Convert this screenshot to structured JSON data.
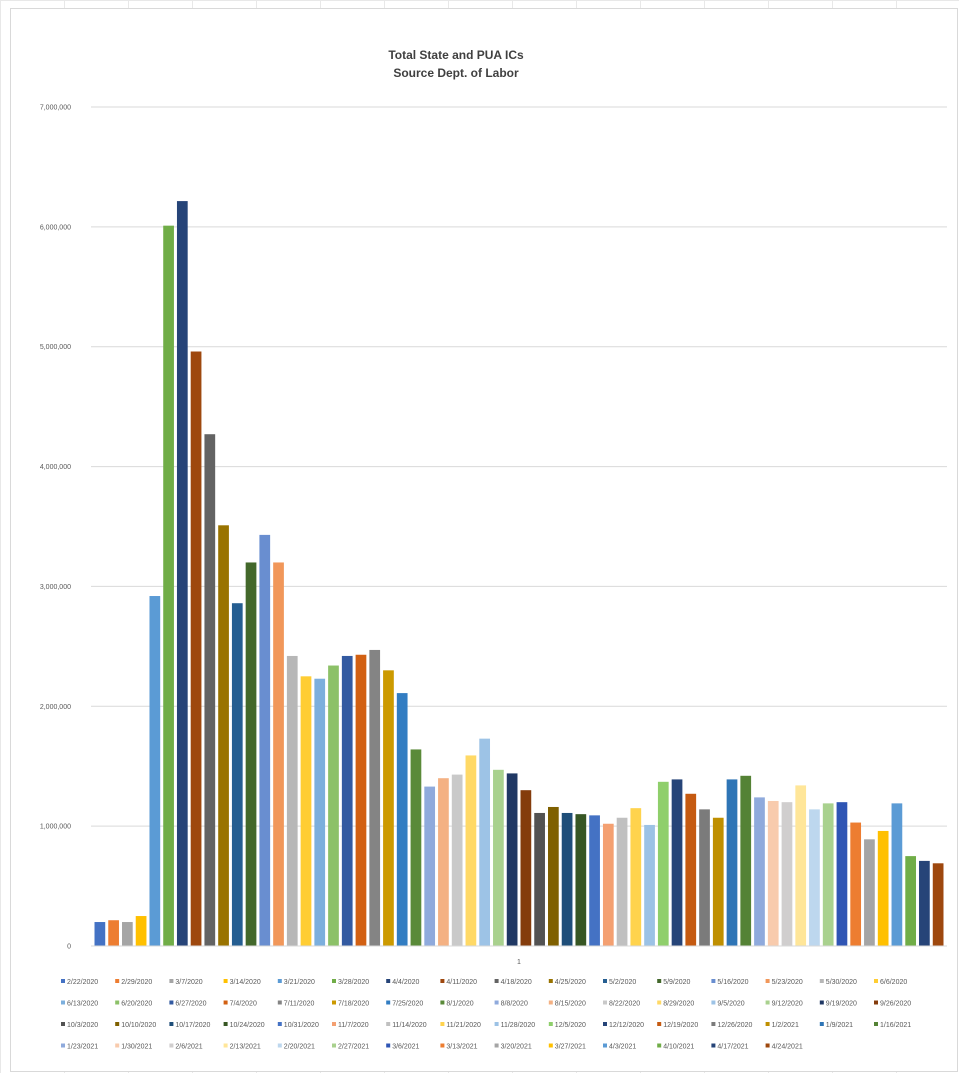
{
  "chart_data": {
    "type": "bar",
    "title": "Total State and PUA ICs",
    "subtitle": "Source Dept. of Labor",
    "xlabel": "",
    "ylabel": "",
    "categories": [
      "1"
    ],
    "x_tick_label": "1",
    "ylim": [
      0,
      7000000
    ],
    "y_ticks": [
      {
        "value": 0,
        "label": "0"
      },
      {
        "value": 1000000,
        "label": "1,000,000"
      },
      {
        "value": 2000000,
        "label": "2,000,000"
      },
      {
        "value": 3000000,
        "label": "3,000,000"
      },
      {
        "value": 4000000,
        "label": "4,000,000"
      },
      {
        "value": 5000000,
        "label": "5,000,000"
      },
      {
        "value": 6000000,
        "label": "6,000,000"
      },
      {
        "value": 7000000,
        "label": "7,000,000"
      }
    ],
    "grid": true,
    "legend_position": "bottom",
    "series": [
      {
        "name": "2/22/2020",
        "value": 200000,
        "color": "#4472c4"
      },
      {
        "name": "2/29/2020",
        "value": 215000,
        "color": "#ed7d31"
      },
      {
        "name": "3/7/2020",
        "value": 200000,
        "color": "#a5a5a5"
      },
      {
        "name": "3/14/2020",
        "value": 250000,
        "color": "#ffc000"
      },
      {
        "name": "3/21/2020",
        "value": 2920000,
        "color": "#5b9bd5"
      },
      {
        "name": "3/28/2020",
        "value": 6010000,
        "color": "#70ad47"
      },
      {
        "name": "4/4/2020",
        "value": 6215000,
        "color": "#264478"
      },
      {
        "name": "4/11/2020",
        "value": 4960000,
        "color": "#9e480e"
      },
      {
        "name": "4/18/2020",
        "value": 4270000,
        "color": "#636363"
      },
      {
        "name": "4/25/2020",
        "value": 3510000,
        "color": "#997300"
      },
      {
        "name": "5/2/2020",
        "value": 2860000,
        "color": "#255e91"
      },
      {
        "name": "5/9/2020",
        "value": 3200000,
        "color": "#43682b"
      },
      {
        "name": "5/16/2020",
        "value": 3430000,
        "color": "#698ed0"
      },
      {
        "name": "5/23/2020",
        "value": 3200000,
        "color": "#f1975a"
      },
      {
        "name": "5/30/2020",
        "value": 2420000,
        "color": "#b7b7b7"
      },
      {
        "name": "6/6/2020",
        "value": 2250000,
        "color": "#ffcd33"
      },
      {
        "name": "6/13/2020",
        "value": 2230000,
        "color": "#7cafdd"
      },
      {
        "name": "6/20/2020",
        "value": 2340000,
        "color": "#8cc168"
      },
      {
        "name": "6/27/2020",
        "value": 2420000,
        "color": "#335aa1"
      },
      {
        "name": "7/4/2020",
        "value": 2430000,
        "color": "#d26012"
      },
      {
        "name": "7/11/2020",
        "value": 2470000,
        "color": "#848484"
      },
      {
        "name": "7/18/2020",
        "value": 2300000,
        "color": "#cc9a00"
      },
      {
        "name": "7/25/2020",
        "value": 2110000,
        "color": "#327dc2"
      },
      {
        "name": "8/1/2020",
        "value": 1640000,
        "color": "#5a8a39"
      },
      {
        "name": "8/8/2020",
        "value": 1330000,
        "color": "#8faadc"
      },
      {
        "name": "8/15/2020",
        "value": 1400000,
        "color": "#f4b183"
      },
      {
        "name": "8/22/2020",
        "value": 1430000,
        "color": "#c9c9c9"
      },
      {
        "name": "8/29/2020",
        "value": 1590000,
        "color": "#ffd966"
      },
      {
        "name": "9/5/2020",
        "value": 1730000,
        "color": "#9dc3e6"
      },
      {
        "name": "9/12/2020",
        "value": 1470000,
        "color": "#a9d18e"
      },
      {
        "name": "9/19/2020",
        "value": 1440000,
        "color": "#203864"
      },
      {
        "name": "9/26/2020",
        "value": 1300000,
        "color": "#843c0c"
      },
      {
        "name": "10/3/2020",
        "value": 1110000,
        "color": "#525252"
      },
      {
        "name": "10/10/2020",
        "value": 1160000,
        "color": "#7f6000"
      },
      {
        "name": "10/17/2020",
        "value": 1110000,
        "color": "#1f4e79"
      },
      {
        "name": "10/24/2020",
        "value": 1100000,
        "color": "#375623"
      },
      {
        "name": "10/31/2020",
        "value": 1090000,
        "color": "#4472c4"
      },
      {
        "name": "11/7/2020",
        "value": 1020000,
        "color": "#f4a071"
      },
      {
        "name": "11/14/2020",
        "value": 1070000,
        "color": "#c0c0c0"
      },
      {
        "name": "11/21/2020",
        "value": 1150000,
        "color": "#ffd34d"
      },
      {
        "name": "11/28/2020",
        "value": 1010000,
        "color": "#9cc2e5"
      },
      {
        "name": "12/5/2020",
        "value": 1370000,
        "color": "#8fcf6b"
      },
      {
        "name": "12/12/2020",
        "value": 1390000,
        "color": "#264478"
      },
      {
        "name": "12/19/2020",
        "value": 1270000,
        "color": "#c55a11"
      },
      {
        "name": "12/26/2020",
        "value": 1140000,
        "color": "#7b7b7b"
      },
      {
        "name": "1/2/2021",
        "value": 1070000,
        "color": "#bf8f00"
      },
      {
        "name": "1/9/2021",
        "value": 1390000,
        "color": "#2e75b6"
      },
      {
        "name": "1/16/2021",
        "value": 1420000,
        "color": "#548235"
      },
      {
        "name": "1/23/2021",
        "value": 1240000,
        "color": "#8faadc"
      },
      {
        "name": "1/30/2021",
        "value": 1210000,
        "color": "#f8cbad"
      },
      {
        "name": "2/6/2021",
        "value": 1200000,
        "color": "#d0cece"
      },
      {
        "name": "2/13/2021",
        "value": 1340000,
        "color": "#ffe699"
      },
      {
        "name": "2/20/2021",
        "value": 1140000,
        "color": "#bdd7ee"
      },
      {
        "name": "2/27/2021",
        "value": 1190000,
        "color": "#a9d18e"
      },
      {
        "name": "3/6/2021",
        "value": 1200000,
        "color": "#2f55b4"
      },
      {
        "name": "3/13/2021",
        "value": 1030000,
        "color": "#ed7d31"
      },
      {
        "name": "3/20/2021",
        "value": 890000,
        "color": "#a5a5a5"
      },
      {
        "name": "3/27/2021",
        "value": 960000,
        "color": "#ffc000"
      },
      {
        "name": "4/3/2021",
        "value": 1190000,
        "color": "#5b9bd5"
      },
      {
        "name": "4/10/2021",
        "value": 750000,
        "color": "#70ad47"
      },
      {
        "name": "4/17/2021",
        "value": 710000,
        "color": "#264478"
      },
      {
        "name": "4/24/2021",
        "value": 690000,
        "color": "#9e480e"
      }
    ]
  }
}
